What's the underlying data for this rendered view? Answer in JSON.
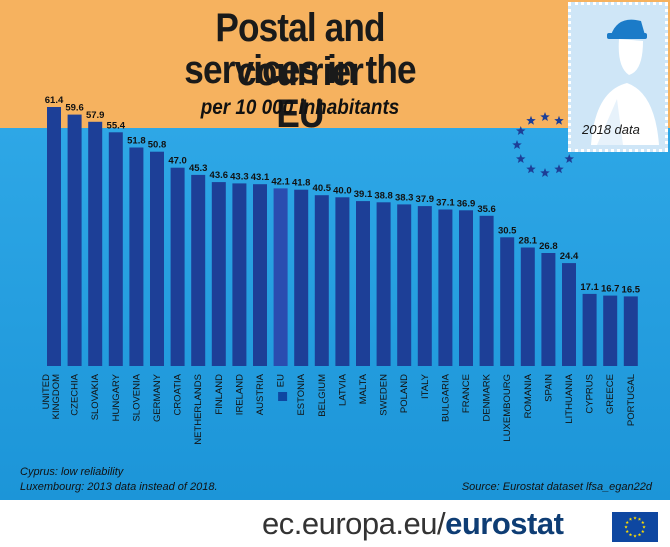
{
  "title_line1": "Postal and courrier",
  "title_line2": "services in the EU",
  "subtitle": "per 10 000 inhabitants",
  "year_label": "2018 data",
  "notes": [
    "Cyprus: low reliability",
    "Luxembourg: 2013 data instead of 2018."
  ],
  "source": "Source: Eurostat dataset lfsa_egan22d",
  "site": {
    "domain": "ec.europa.eu/",
    "brand": "eurostat"
  },
  "colors": {
    "bar": "#1d3f97",
    "eu_bar": "#2a4db0",
    "top_band": "#f6b25f",
    "chart_bg": "#2ea7e6",
    "stars": "#1d3f97"
  },
  "icons": [
    "postman-stamp-icon",
    "eu-stars-icon",
    "eu-flag-icon"
  ],
  "chart_data": {
    "type": "bar",
    "title": "Postal and courrier services in the EU",
    "subtitle": "per 10 000 inhabitants",
    "categories": [
      "UNITED KINGDOM",
      "CZECHIA",
      "SLOVAKIA",
      "HUNGARY",
      "SLOVENIA",
      "GERMANY",
      "CROATIA",
      "NETHERLANDS",
      "FINLAND",
      "IRELAND",
      "AUSTRIA",
      "EU",
      "ESTONIA",
      "BELGIUM",
      "LATVIA",
      "MALTA",
      "SWEDEN",
      "POLAND",
      "ITALY",
      "BULGARIA",
      "FRANCE",
      "DENMARK",
      "LUXEMBOURG",
      "ROMANIA",
      "SPAIN",
      "LITHUANIA",
      "CYPRUS",
      "GREECE",
      "PORTUGAL"
    ],
    "values": [
      61.4,
      59.6,
      57.9,
      55.4,
      51.8,
      50.8,
      47.0,
      45.3,
      43.6,
      43.3,
      43.1,
      42.1,
      41.8,
      40.5,
      40.0,
      39.1,
      38.8,
      38.3,
      37.9,
      37.1,
      36.9,
      35.6,
      30.5,
      28.1,
      26.8,
      24.4,
      17.1,
      16.7,
      16.5
    ],
    "value_labels": [
      "61.4",
      "59.6",
      "57.9",
      "55.4",
      "51.8",
      "50.8",
      "47.0",
      "45.3",
      "43.6",
      "43.3",
      "43.1",
      "42.1",
      "41.8",
      "40.5",
      "40.0",
      "39.1",
      "38.8",
      "38.3",
      "37.9",
      "37.1",
      "36.9",
      "35.6",
      "30.5",
      "28.1",
      "26.8",
      "24.4",
      "17.1",
      "16.7",
      "16.5"
    ],
    "ylim": [
      0,
      61.4
    ],
    "grid": false,
    "legend": "none"
  }
}
